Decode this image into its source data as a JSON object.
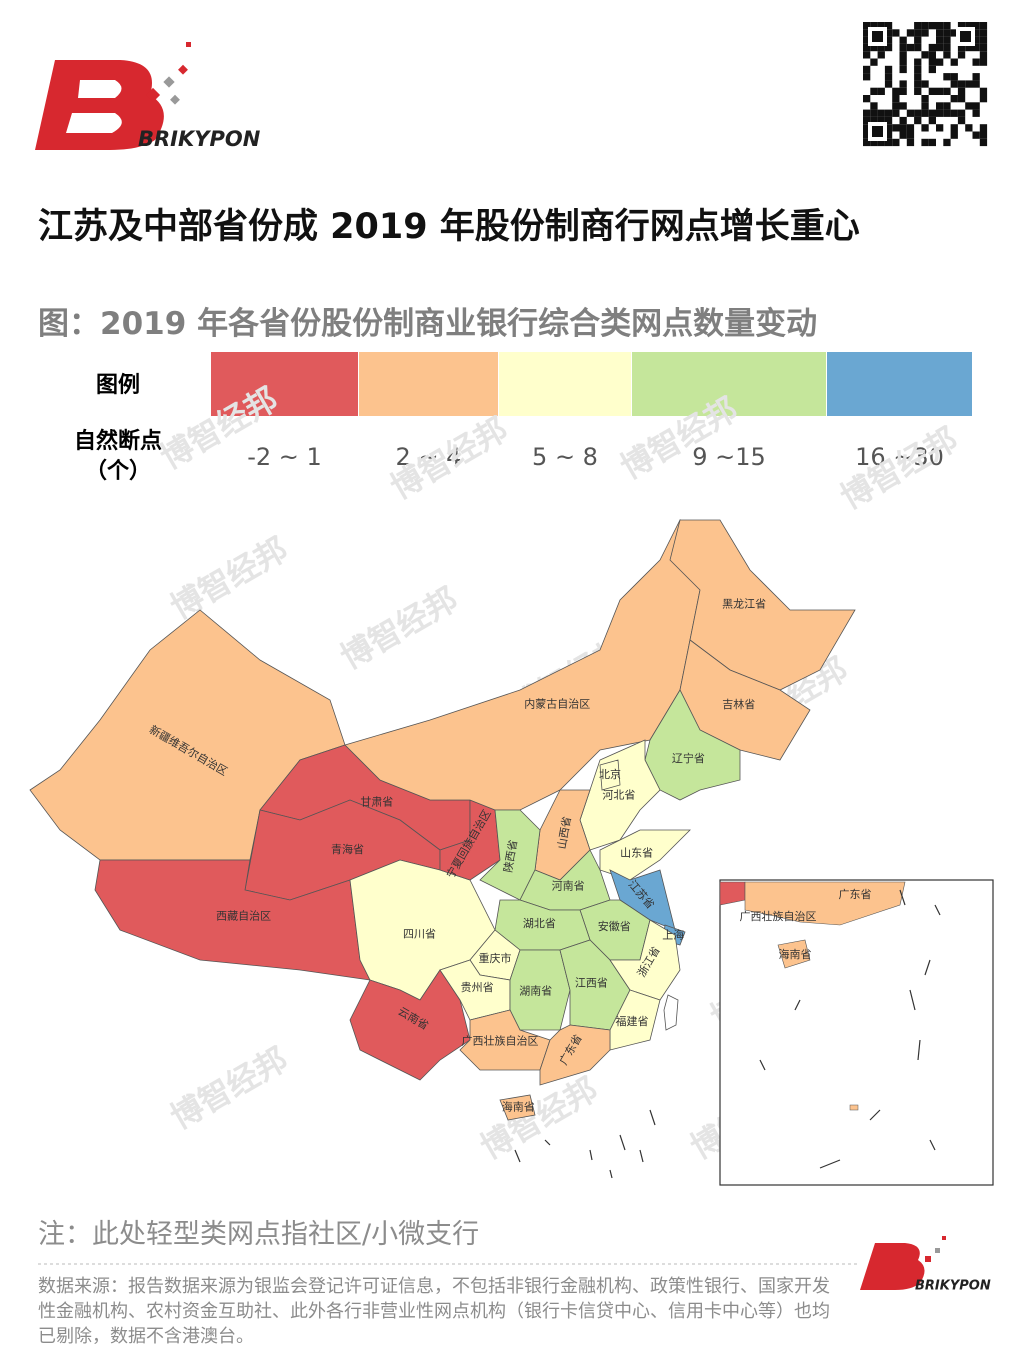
{
  "header": {
    "brand": "BRIKYPON"
  },
  "title": "江苏及中部省份成 2019 年股份制商行网点增长重心",
  "figure_title": "图：2019 年各省份股份制商业银行综合类网点数量变动",
  "legend": {
    "title": "图例",
    "subtitle": "自然断点",
    "unit": "（个）",
    "classes": [
      {
        "label": "-2 ~ 1",
        "color": "#e05a5c"
      },
      {
        "label": "2 ~ 4",
        "color": "#fcc38e"
      },
      {
        "label": "5 ~ 8",
        "color": "#ffffcc"
      },
      {
        "label": "9 ~15",
        "color": "#c5e69b"
      },
      {
        "label": "16 ~30",
        "color": "#6aa7d2"
      }
    ]
  },
  "map": {
    "regions": [
      {
        "name": "新疆维吾尔自治区",
        "class": 1
      },
      {
        "name": "甘肃省",
        "class": 0
      },
      {
        "name": "青海省",
        "class": 0
      },
      {
        "name": "西藏自治区",
        "class": 0
      },
      {
        "name": "四川省",
        "class": 2
      },
      {
        "name": "云南省",
        "class": 0
      },
      {
        "name": "宁夏回族自治区",
        "class": 0
      },
      {
        "name": "内蒙古自治区",
        "class": 1
      },
      {
        "name": "黑龙江省",
        "class": 1
      },
      {
        "name": "吉林省",
        "class": 1
      },
      {
        "name": "辽宁省",
        "class": 3
      },
      {
        "name": "河北省",
        "class": 2
      },
      {
        "name": "北京",
        "class": 2
      },
      {
        "name": "山西省",
        "class": 1
      },
      {
        "name": "陕西省",
        "class": 3
      },
      {
        "name": "山东省",
        "class": 2
      },
      {
        "name": "河南省",
        "class": 3
      },
      {
        "name": "江苏省",
        "class": 4
      },
      {
        "name": "安徽省",
        "class": 3
      },
      {
        "name": "上海",
        "class": 4
      },
      {
        "name": "湖北省",
        "class": 3
      },
      {
        "name": "重庆市",
        "class": 2
      },
      {
        "name": "贵州省",
        "class": 2
      },
      {
        "name": "湖南省",
        "class": 3
      },
      {
        "name": "江西省",
        "class": 3
      },
      {
        "name": "浙江省",
        "class": 2
      },
      {
        "name": "福建省",
        "class": 2
      },
      {
        "name": "广西壮族自治区",
        "class": 1
      },
      {
        "name": "广东省",
        "class": 1
      },
      {
        "name": "海南省",
        "class": 1
      }
    ],
    "inset_labels": [
      "广东省",
      "广西壮族自治区",
      "海南省"
    ]
  },
  "watermark": "博智经邦",
  "note": "注：此处轻型类网点指社区/小微支行",
  "source": "数据来源：报告数据来源为银监会登记许可证信息，不包括非银行金融机构、政策性银行、国家开发性金融机构、农村资金互助社、此外各行非营业性网点机构（银行卡信贷中心、信用卡中心等）也均已剔除，数据不含港澳台。"
}
